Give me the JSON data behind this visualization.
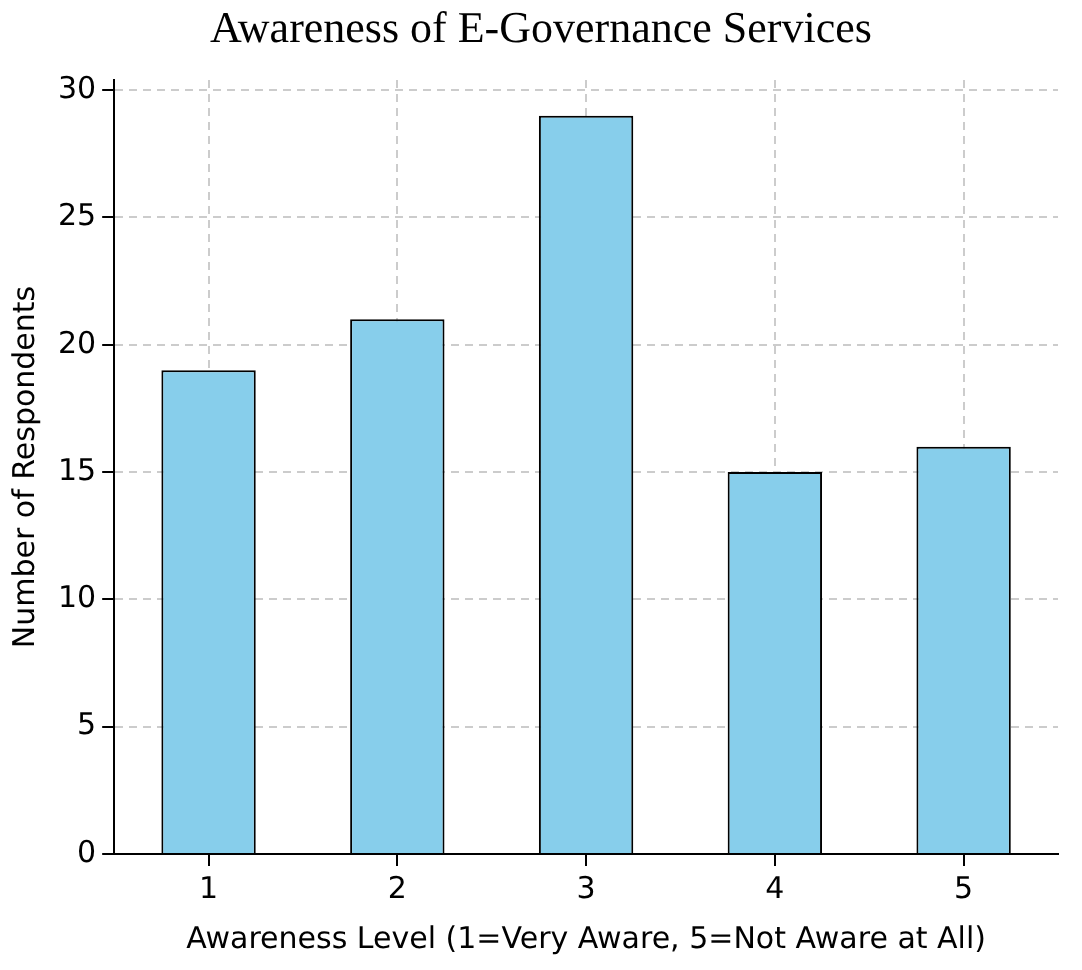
{
  "chart_data": {
    "type": "bar",
    "title": "Awareness of E-Governance Services",
    "xlabel": "Awareness Level (1=Very Aware, 5=Not Aware at All)",
    "ylabel": "Number of Respondents",
    "categories": [
      "1",
      "2",
      "3",
      "4",
      "5"
    ],
    "values": [
      19,
      21,
      29,
      15,
      16
    ],
    "color": "#87ceeb",
    "ylim": [
      0,
      30.4
    ],
    "yticks": [
      0,
      5,
      10,
      15,
      20,
      25,
      30
    ],
    "grid": true,
    "legend": false
  }
}
